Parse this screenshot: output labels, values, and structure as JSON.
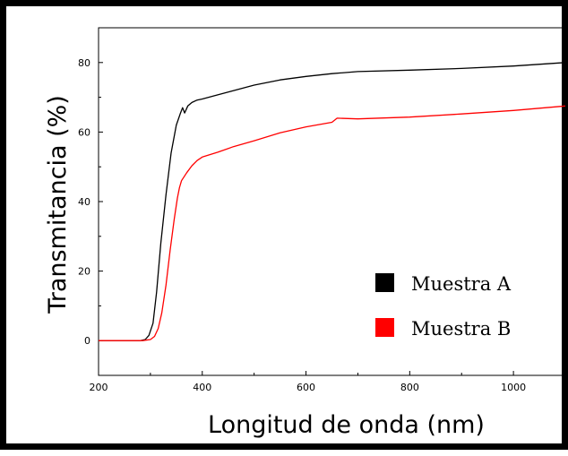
{
  "chart_data": {
    "type": "line",
    "title": "",
    "xlabel": "Longitud de onda (nm)",
    "ylabel": "Transmitancia (%)",
    "xlim": [
      200,
      1100
    ],
    "ylim": [
      -10,
      90
    ],
    "xticks": [
      200,
      400,
      600,
      800,
      1000
    ],
    "yticks": [
      0,
      20,
      40,
      60,
      80
    ],
    "grid": false,
    "legend_position": "lower-right",
    "series": [
      {
        "name": "Muestra A",
        "color": "#000000",
        "x": [
          200,
          280,
          290,
          297,
          305,
          312,
          320,
          330,
          340,
          350,
          358,
          362,
          366,
          372,
          380,
          390,
          400,
          420,
          450,
          500,
          550,
          600,
          650,
          700,
          800,
          900,
          1000,
          1100
        ],
        "y": [
          0,
          0,
          0.3,
          1.5,
          5,
          14,
          28,
          42,
          54,
          62,
          65.5,
          67,
          65.5,
          67.5,
          68.5,
          69.2,
          69.5,
          70.3,
          71.5,
          73.5,
          75,
          76,
          76.8,
          77.4,
          77.8,
          78.3,
          79,
          80
        ]
      },
      {
        "name": "Muestra B",
        "color": "#ff0000",
        "x": [
          200,
          285,
          300,
          308,
          315,
          322,
          330,
          338,
          346,
          352,
          356,
          360,
          370,
          380,
          390,
          400,
          430,
          460,
          500,
          550,
          600,
          650,
          660,
          700,
          800,
          900,
          1000,
          1100
        ],
        "y": [
          0,
          0,
          0.3,
          1.2,
          3.5,
          8,
          16,
          26,
          35,
          41,
          44,
          46,
          48.3,
          50.3,
          51.8,
          52.8,
          54.2,
          55.8,
          57.5,
          59.8,
          61.5,
          62.8,
          64,
          63.8,
          64.3,
          65.2,
          66.2,
          67.5
        ]
      }
    ]
  }
}
